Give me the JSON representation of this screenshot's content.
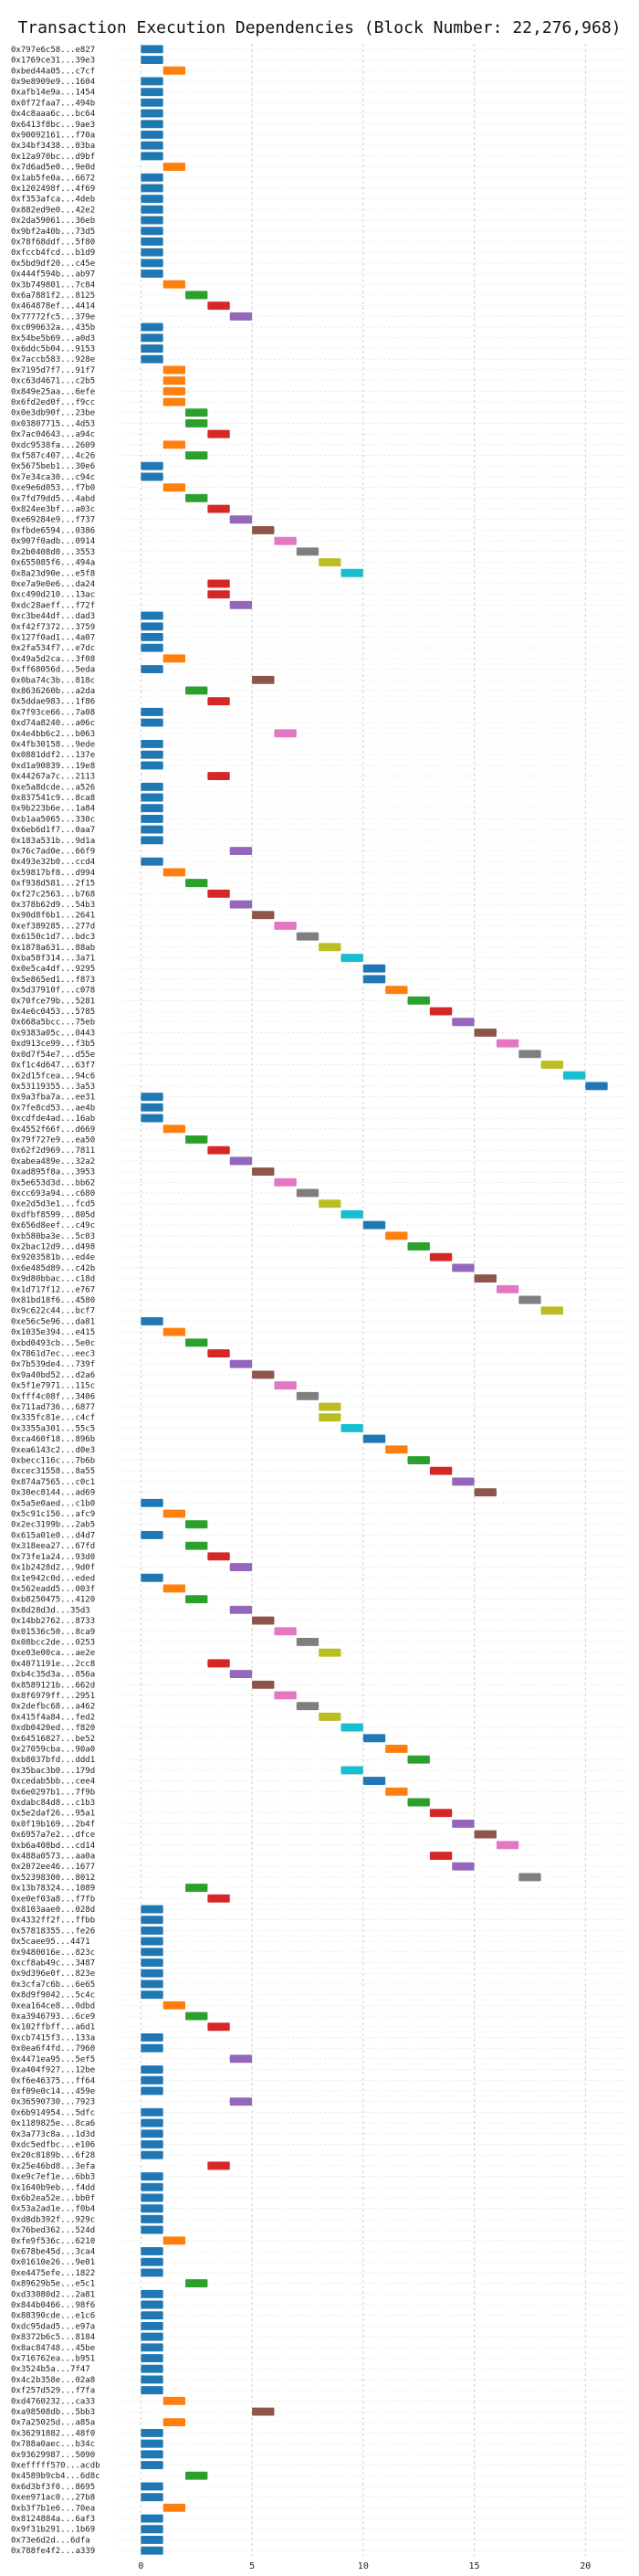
{
  "chart_data": {
    "type": "gantt",
    "title": "Transaction Execution Dependencies (Block Number: 22,276,968)",
    "xlabel": "",
    "ylabel": "",
    "xlim": [
      -1,
      22
    ],
    "x_ticks": [
      0,
      5,
      10,
      15,
      20
    ],
    "grid": true,
    "bar_duration": 1,
    "palette": [
      "#1f77b4",
      "#ff7f0e",
      "#2ca02c",
      "#d62728",
      "#9467bd",
      "#8c564b",
      "#e377c2",
      "#7f7f7f",
      "#bcbd22",
      "#17becf"
    ],
    "rows": [
      {
        "label": "0x797e6c58...e827",
        "start": 0
      },
      {
        "label": "0x1769ce31...39e3",
        "start": 0
      },
      {
        "label": "0xbed44a05...c7cf",
        "start": 1
      },
      {
        "label": "0x9e8909e9...1604",
        "start": 0
      },
      {
        "label": "0xafb14e9a...1454",
        "start": 0
      },
      {
        "label": "0x0f72faa7...494b",
        "start": 0
      },
      {
        "label": "0x4c8aaa6c...bc64",
        "start": 0
      },
      {
        "label": "0x6413f8bc...9ae3",
        "start": 0
      },
      {
        "label": "0x90092161...f70a",
        "start": 0
      },
      {
        "label": "0x34bf3438...03ba",
        "start": 0
      },
      {
        "label": "0x12a970bc...d9bf",
        "start": 0
      },
      {
        "label": "0x7d6ad5e0...9e0d",
        "start": 1
      },
      {
        "label": "0x1ab5fe0a...6672",
        "start": 0
      },
      {
        "label": "0x1202498f...4f69",
        "start": 0
      },
      {
        "label": "0xf353afca...4deb",
        "start": 0
      },
      {
        "label": "0x882ed9e0...42e2",
        "start": 0
      },
      {
        "label": "0x2da59061...36eb",
        "start": 0
      },
      {
        "label": "0x9bf2a40b...73d5",
        "start": 0
      },
      {
        "label": "0x78f68ddf...5f80",
        "start": 0
      },
      {
        "label": "0xfccb4fcd...b1d9",
        "start": 0
      },
      {
        "label": "0x5bd9df20...c45e",
        "start": 0
      },
      {
        "label": "0x444f594b...ab97",
        "start": 0
      },
      {
        "label": "0x3b749801...7c84",
        "start": 1
      },
      {
        "label": "0x6a7881f2...8125",
        "start": 2
      },
      {
        "label": "0x464878ef...4414",
        "start": 3
      },
      {
        "label": "0x77772fc5...379e",
        "start": 4
      },
      {
        "label": "0xc090632a...435b",
        "start": 0
      },
      {
        "label": "0x54be5b69...a0d3",
        "start": 0
      },
      {
        "label": "0x6ddc5b04...9153",
        "start": 0
      },
      {
        "label": "0x7accb583...928e",
        "start": 0
      },
      {
        "label": "0x7195d7f7...91f7",
        "start": 1
      },
      {
        "label": "0xc63d4671...c2b5",
        "start": 1
      },
      {
        "label": "0x849e25aa...6efe",
        "start": 1
      },
      {
        "label": "0x6fd2ed0f...f9cc",
        "start": 1
      },
      {
        "label": "0x0e3db90f...23be",
        "start": 2
      },
      {
        "label": "0x03807715...4d53",
        "start": 2
      },
      {
        "label": "0x7ac04643...a94c",
        "start": 3
      },
      {
        "label": "0xdc9538fa...2609",
        "start": 1
      },
      {
        "label": "0xf587c407...4c26",
        "start": 2
      },
      {
        "label": "0x5675beb1...30e6",
        "start": 0
      },
      {
        "label": "0x7e34ca30...c94c",
        "start": 0
      },
      {
        "label": "0xe9e6d053...f7b0",
        "start": 1
      },
      {
        "label": "0x7fd79dd5...4abd",
        "start": 2
      },
      {
        "label": "0x824ee3bf...a03c",
        "start": 3
      },
      {
        "label": "0xe69284e9...f737",
        "start": 4
      },
      {
        "label": "0xfbde6594...0386",
        "start": 5
      },
      {
        "label": "0x907f0adb...0914",
        "start": 6
      },
      {
        "label": "0x2b0408d0...3553",
        "start": 7
      },
      {
        "label": "0x655085f6...494a",
        "start": 8
      },
      {
        "label": "0x8a23d90e...e5f8",
        "start": 9
      },
      {
        "label": "0xe7a9e0e6...da24",
        "start": 3
      },
      {
        "label": "0xc490d210...13ac",
        "start": 3
      },
      {
        "label": "0xdc28aeff...f72f",
        "start": 4
      },
      {
        "label": "0xc3be44df...dad3",
        "start": 0
      },
      {
        "label": "0xf42f7372...3759",
        "start": 0
      },
      {
        "label": "0x127f0ad1...4a07",
        "start": 0
      },
      {
        "label": "0x2fa534f7...e7dc",
        "start": 0
      },
      {
        "label": "0x49a5d2ca...3f08",
        "start": 1
      },
      {
        "label": "0xff68056d...5eda",
        "start": 0
      },
      {
        "label": "0x0ba74c3b...818c",
        "start": 5
      },
      {
        "label": "0x8636260b...a2da",
        "start": 2
      },
      {
        "label": "0x5ddae983...1f86",
        "start": 3
      },
      {
        "label": "0x7f93ce66...7a08",
        "start": 0
      },
      {
        "label": "0xd74a8240...a06c",
        "start": 0
      },
      {
        "label": "0x4e4bb6c2...b063",
        "start": 6
      },
      {
        "label": "0x4fb30158...9ede",
        "start": 0
      },
      {
        "label": "0x0881ddf2...137e",
        "start": 0
      },
      {
        "label": "0xd1a90839...19e8",
        "start": 0
      },
      {
        "label": "0x44267a7c...2113",
        "start": 3
      },
      {
        "label": "0xe5a8dcde...a526",
        "start": 0
      },
      {
        "label": "0x837541c9...8ca8",
        "start": 0
      },
      {
        "label": "0x9b223b6e...1a84",
        "start": 0
      },
      {
        "label": "0xb1aa5065...330c",
        "start": 0
      },
      {
        "label": "0x6eb6d1f7...0aa7",
        "start": 0
      },
      {
        "label": "0x183a531b...9d1a",
        "start": 0
      },
      {
        "label": "0x76c7ad0e...66f9",
        "start": 4
      },
      {
        "label": "0x493e32b0...ccd4",
        "start": 0
      },
      {
        "label": "0x59817bf8...d994",
        "start": 1
      },
      {
        "label": "0xf938d581...2f15",
        "start": 2
      },
      {
        "label": "0xf27c2563...b768",
        "start": 3
      },
      {
        "label": "0x378b62d9...54b3",
        "start": 4
      },
      {
        "label": "0x90d8f6b1...2641",
        "start": 5
      },
      {
        "label": "0xef389285...277d",
        "start": 6
      },
      {
        "label": "0x6150c1d7...bdc3",
        "start": 7
      },
      {
        "label": "0x1878a631...88ab",
        "start": 8
      },
      {
        "label": "0xba58f314...3a71",
        "start": 9
      },
      {
        "label": "0x0e5ca4df...9295",
        "start": 10
      },
      {
        "label": "0x5e865ed1...f873",
        "start": 10
      },
      {
        "label": "0x5d37910f...c078",
        "start": 11
      },
      {
        "label": "0x70fce79b...5281",
        "start": 12
      },
      {
        "label": "0x4e6c0453...5785",
        "start": 13
      },
      {
        "label": "0x668a5bcc...75eb",
        "start": 14
      },
      {
        "label": "0x9383a05c...0443",
        "start": 15
      },
      {
        "label": "0xd913ce99...f3b5",
        "start": 16
      },
      {
        "label": "0x0d7f54e7...d55e",
        "start": 17
      },
      {
        "label": "0xf1c4d647...63f7",
        "start": 18
      },
      {
        "label": "0x2d15fcea...94c6",
        "start": 19
      },
      {
        "label": "0x53119355...3a53",
        "start": 20
      },
      {
        "label": "0x9a3fba7a...ee31",
        "start": 0
      },
      {
        "label": "0x7fe8cd53...ae4b",
        "start": 0
      },
      {
        "label": "0xcdfde4ad...16ab",
        "start": 0
      },
      {
        "label": "0x4552f66f...d669",
        "start": 1
      },
      {
        "label": "0x79f727e9...ea50",
        "start": 2
      },
      {
        "label": "0x62f2d969...7811",
        "start": 3
      },
      {
        "label": "0xabea489e...32a2",
        "start": 4
      },
      {
        "label": "0xad895f8a...3953",
        "start": 5
      },
      {
        "label": "0x5e653d3d...bb62",
        "start": 6
      },
      {
        "label": "0xcc693a94...c680",
        "start": 7
      },
      {
        "label": "0xe2d5d3e1...fcd5",
        "start": 8
      },
      {
        "label": "0xdfbf8599...805d",
        "start": 9
      },
      {
        "label": "0x656d8eef...c49c",
        "start": 10
      },
      {
        "label": "0xb580ba3e...5c03",
        "start": 11
      },
      {
        "label": "0x2bac12d9...d498",
        "start": 12
      },
      {
        "label": "0x9203581b...ed4e",
        "start": 13
      },
      {
        "label": "0x6e485d89...c42b",
        "start": 14
      },
      {
        "label": "0x9d80bbac...c18d",
        "start": 15
      },
      {
        "label": "0x1d717f12...e767",
        "start": 16
      },
      {
        "label": "0x81bd18f6...4580",
        "start": 17
      },
      {
        "label": "0x9c622c44...bcf7",
        "start": 18
      },
      {
        "label": "0xe56c5e96...da81",
        "start": 0
      },
      {
        "label": "0x1035e394...e415",
        "start": 1
      },
      {
        "label": "0xbd0493cb...5e0c",
        "start": 2
      },
      {
        "label": "0x7861d7ec...eec3",
        "start": 3
      },
      {
        "label": "0x7b539de4...739f",
        "start": 4
      },
      {
        "label": "0x9a40bd52...d2a6",
        "start": 5
      },
      {
        "label": "0x5f1e7971...115c",
        "start": 6
      },
      {
        "label": "0xfff4c08f...3406",
        "start": 7
      },
      {
        "label": "0x711ad736...6877",
        "start": 8
      },
      {
        "label": "0x335fc81e...c4cf",
        "start": 8
      },
      {
        "label": "0x3355a301...55c5",
        "start": 9
      },
      {
        "label": "0xca460f18...896b",
        "start": 10
      },
      {
        "label": "0xea6143c2...d0e3",
        "start": 11
      },
      {
        "label": "0xbecc116c...7b6b",
        "start": 12
      },
      {
        "label": "0xcec31558...8a55",
        "start": 13
      },
      {
        "label": "0x874a7565...c0c1",
        "start": 14
      },
      {
        "label": "0x30ec8144...ad69",
        "start": 15
      },
      {
        "label": "0x5a5e0aed...c1b0",
        "start": 0
      },
      {
        "label": "0x5c91c156...afc9",
        "start": 1
      },
      {
        "label": "0x2ec3199b...2ab5",
        "start": 2
      },
      {
        "label": "0x615a01e0...d4d7",
        "start": 0
      },
      {
        "label": "0x318eea27...67fd",
        "start": 2
      },
      {
        "label": "0x73fe1a24...93d0",
        "start": 3
      },
      {
        "label": "0x1b2428d2...9d0f",
        "start": 4
      },
      {
        "label": "0x1e942c0d...eded",
        "start": 0
      },
      {
        "label": "0x562eadd5...003f",
        "start": 1
      },
      {
        "label": "0xb8250475...4120",
        "start": 2
      },
      {
        "label": "0x8d28d3d...35d3",
        "start": 4
      },
      {
        "label": "0x14bb2762...8733",
        "start": 5
      },
      {
        "label": "0x01536c50...8ca9",
        "start": 6
      },
      {
        "label": "0x08bcc2de...0253",
        "start": 7
      },
      {
        "label": "0xe03e00ca...ae2e",
        "start": 8
      },
      {
        "label": "0x4071191e...2cc8",
        "start": 3
      },
      {
        "label": "0xb4c35d3a...856a",
        "start": 4
      },
      {
        "label": "0x8589121b...662d",
        "start": 5
      },
      {
        "label": "0x8f6979ff...2951",
        "start": 6
      },
      {
        "label": "0x2defbc68...a462",
        "start": 7
      },
      {
        "label": "0x415f4a84...fed2",
        "start": 8
      },
      {
        "label": "0xdb0420ed...f820",
        "start": 9
      },
      {
        "label": "0x64516827...be52",
        "start": 10
      },
      {
        "label": "0x27059cba...90a0",
        "start": 11
      },
      {
        "label": "0xb8037bfd...ddd1",
        "start": 12
      },
      {
        "label": "0x35bac3b0...179d",
        "start": 9
      },
      {
        "label": "0xcedab5bb...cee4",
        "start": 10
      },
      {
        "label": "0x6e0297b1...7f9b",
        "start": 11
      },
      {
        "label": "0xdabc84d8...c1b3",
        "start": 12
      },
      {
        "label": "0x5e2daf26...95a1",
        "start": 13
      },
      {
        "label": "0x0f19b169...2b4f",
        "start": 14
      },
      {
        "label": "0x6957a7e2...dfce",
        "start": 15
      },
      {
        "label": "0xb6a408bd...cd14",
        "start": 16
      },
      {
        "label": "0x488a0573...aa0a",
        "start": 13
      },
      {
        "label": "0x2072ee46...1677",
        "start": 14
      },
      {
        "label": "0x52398300...8012",
        "start": 17
      },
      {
        "label": "0x13b78324...1089",
        "start": 2
      },
      {
        "label": "0xe0ef03a8...f7fb",
        "start": 3
      },
      {
        "label": "0x8103aae0...028d",
        "start": 0
      },
      {
        "label": "0x4332ff2f...ffbb",
        "start": 0
      },
      {
        "label": "0x57818355...fe26",
        "start": 0
      },
      {
        "label": "0x5caee95...4471",
        "start": 0
      },
      {
        "label": "0x9480016e...823c",
        "start": 0
      },
      {
        "label": "0xcf8ab49c...3487",
        "start": 0
      },
      {
        "label": "0x9d396e0f...823e",
        "start": 0
      },
      {
        "label": "0x3cfa7c6b...6e65",
        "start": 0
      },
      {
        "label": "0x8d9f9042...5c4c",
        "start": 0
      },
      {
        "label": "0xea164ce8...0dbd",
        "start": 1
      },
      {
        "label": "0xa3946793...6ce9",
        "start": 2
      },
      {
        "label": "0x102ffbff...a6d1",
        "start": 3
      },
      {
        "label": "0xcb7415f3...133a",
        "start": 0
      },
      {
        "label": "0x0ea6f4fd...7960",
        "start": 0
      },
      {
        "label": "0x4471ea95...5ef5",
        "start": 4
      },
      {
        "label": "0xa404f927...12be",
        "start": 0
      },
      {
        "label": "0xf6e46375...ff64",
        "start": 0
      },
      {
        "label": "0xf09e0c14...459e",
        "start": 0
      },
      {
        "label": "0x36590730...7923",
        "start": 4
      },
      {
        "label": "0x6b914954...5dfc",
        "start": 0
      },
      {
        "label": "0x1189825e...8ca6",
        "start": 0
      },
      {
        "label": "0x3a773c8a...1d3d",
        "start": 0
      },
      {
        "label": "0xdc5edfbc...e106",
        "start": 0
      },
      {
        "label": "0x20c8189b...6f28",
        "start": 0
      },
      {
        "label": "0x25e46bd8...3efa",
        "start": 3
      },
      {
        "label": "0xe9c7ef1e...6bb3",
        "start": 0
      },
      {
        "label": "0x1640b9eb...f4dd",
        "start": 0
      },
      {
        "label": "0x6b2ea52e...bb0f",
        "start": 0
      },
      {
        "label": "0x53a2ad1e...f0b4",
        "start": 0
      },
      {
        "label": "0xd8db392f...929c",
        "start": 0
      },
      {
        "label": "0x76bed362...524d",
        "start": 0
      },
      {
        "label": "0xfe9f536c...6210",
        "start": 1
      },
      {
        "label": "0x678be45d...3ca4",
        "start": 0
      },
      {
        "label": "0x01610e26...9e01",
        "start": 0
      },
      {
        "label": "0xe4475efe...1822",
        "start": 0
      },
      {
        "label": "0x89629b5e...e5c1",
        "start": 2
      },
      {
        "label": "0xd33080d2...2a81",
        "start": 0
      },
      {
        "label": "0x844b0466...98f6",
        "start": 0
      },
      {
        "label": "0x88390cde...e1c6",
        "start": 0
      },
      {
        "label": "0xdc95dad5...e97a",
        "start": 0
      },
      {
        "label": "0x8372b6c5...8184",
        "start": 0
      },
      {
        "label": "0x8ac84748...45be",
        "start": 0
      },
      {
        "label": "0x716762ea...b951",
        "start": 0
      },
      {
        "label": "0x3524b5a...7f47",
        "start": 0
      },
      {
        "label": "0x4c2b358e...02a8",
        "start": 0
      },
      {
        "label": "0xf257d529...f7fa",
        "start": 0
      },
      {
        "label": "0xd4760232...ca33",
        "start": 1
      },
      {
        "label": "0xa98508db...5bb3",
        "start": 5
      },
      {
        "label": "0x7a25025d...a85a",
        "start": 1
      },
      {
        "label": "0x36291882...48f0",
        "start": 0
      },
      {
        "label": "0x788a0aec...b34c",
        "start": 0
      },
      {
        "label": "0x93629987...5090",
        "start": 0
      },
      {
        "label": "0xefffff570...acdb",
        "start": 0
      },
      {
        "label": "0x4589b9cb4...6d8c",
        "start": 2
      },
      {
        "label": "0x6d3bf3f0...8695",
        "start": 0
      },
      {
        "label": "0xee971ac0...27b8",
        "start": 0
      },
      {
        "label": "0xb3f7b1e6...70ea",
        "start": 1
      },
      {
        "label": "0x8124884a...6af3",
        "start": 0
      },
      {
        "label": "0x9f31b291...1b69",
        "start": 0
      },
      {
        "label": "0x73e6d2d...6dfa",
        "start": 0
      },
      {
        "label": "0x788fe4f2...a339",
        "start": 0
      }
    ]
  }
}
